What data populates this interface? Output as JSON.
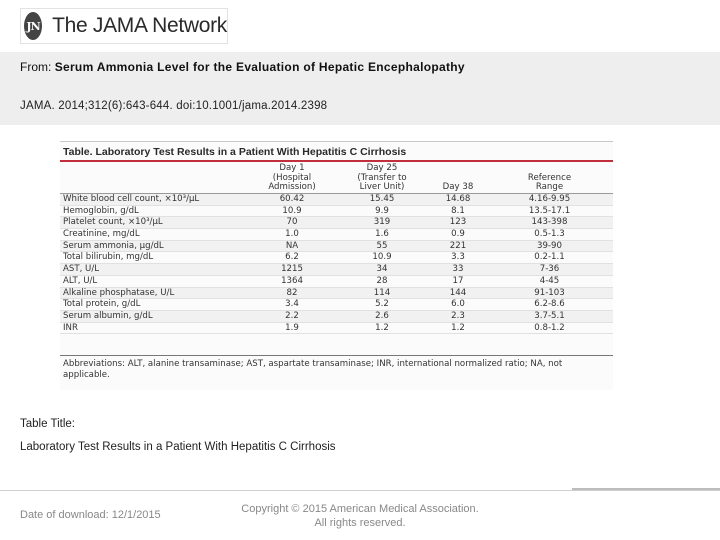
{
  "header": {
    "logo_mark": "JN",
    "logo_text": "The JAMA Network"
  },
  "source": {
    "from_label": "From:",
    "article_title": "Serum Ammonia Level for the Evaluation of Hepatic Encephalopathy",
    "citation": "JAMA. 2014;312(6):643-644. doi:10.1001/jama.2014.2398"
  },
  "table": {
    "title": "Table. Laboratory Test Results in a Patient With Hepatitis C Cirrhosis",
    "columns": [
      "",
      "Day 1\n(Hospital\nAdmission)",
      "Day 25\n(Transfer to\nLiver Unit)",
      "Day 38",
      "Reference\nRange"
    ],
    "rows": [
      [
        "White blood cell count, ×10³/μL",
        "60.42",
        "15.45",
        "14.68",
        "4.16-9.95"
      ],
      [
        "Hemoglobin, g/dL",
        "10.9",
        "9.9",
        "8.1",
        "13.5-17.1"
      ],
      [
        "Platelet count, ×10³/μL",
        "70",
        "319",
        "123",
        "143-398"
      ],
      [
        "Creatinine, mg/dL",
        "1.0",
        "1.6",
        "0.9",
        "0.5-1.3"
      ],
      [
        "Serum ammonia, μg/dL",
        "NA",
        "55",
        "221",
        "39-90"
      ],
      [
        "Total bilirubin, mg/dL",
        "6.2",
        "10.9",
        "3.3",
        "0.2-1.1"
      ],
      [
        "AST, U/L",
        "1215",
        "34",
        "33",
        "7-36"
      ],
      [
        "ALT, U/L",
        "1364",
        "28",
        "17",
        "4-45"
      ],
      [
        "Alkaline phosphatase, U/L",
        "82",
        "114",
        "144",
        "91-103"
      ],
      [
        "Total protein, g/dL",
        "3.4",
        "5.2",
        "6.0",
        "6.2-8.6"
      ],
      [
        "Serum albumin, g/dL",
        "2.2",
        "2.6",
        "2.3",
        "3.7-5.1"
      ],
      [
        "INR",
        "1.9",
        "1.2",
        "1.2",
        "0.8-1.2"
      ]
    ],
    "footnote": "Abbreviations: ALT, alanine transaminase; AST, aspartate transaminase; INR, international normalized ratio; NA, not applicable."
  },
  "caption": {
    "label": "Table Title:",
    "text": "Laboratory Test Results in a Patient With Hepatitis C Cirrhosis"
  },
  "footer": {
    "download": "Date of download:  12/1/2015",
    "copyright_line1": "Copyright © 2015 American Medical Association.",
    "copyright_line2": "All rights reserved."
  }
}
